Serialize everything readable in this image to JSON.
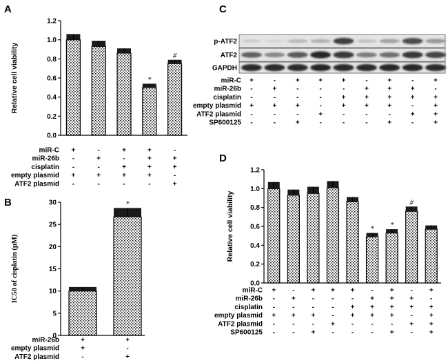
{
  "chart_data": [
    {
      "panel": "A",
      "type": "bar",
      "ylabel": "Relative cell viability",
      "ylim": [
        0,
        1.2
      ],
      "yticks": [
        "0.0",
        "0.2",
        "0.4",
        "0.6",
        "0.8",
        "1.0",
        "1.2"
      ],
      "values": [
        1.0,
        0.93,
        0.86,
        0.5,
        0.75
      ],
      "errors": [
        0.06,
        0.06,
        0.05,
        0.04,
        0.04
      ],
      "annotations": [
        "",
        "",
        "",
        "*",
        "#"
      ],
      "conditions": [
        {
          "label": "miR-C",
          "signs": [
            "+",
            "-",
            "+",
            "+",
            "-"
          ]
        },
        {
          "label": "miR-26b",
          "signs": [
            "-",
            "+",
            "-",
            "+",
            "+"
          ]
        },
        {
          "label": "cisplatin",
          "signs": [
            "-",
            "-",
            "+",
            "+",
            "+"
          ]
        },
        {
          "label": "empty plasmid",
          "signs": [
            "+",
            "+",
            "+",
            "+",
            "-"
          ]
        },
        {
          "label": "ATF2 plasmid",
          "signs": [
            "-",
            "-",
            "-",
            "-",
            "+"
          ]
        }
      ]
    },
    {
      "panel": "B",
      "type": "bar",
      "ylabel": "IC50 of cisplatin (μM)",
      "ylim": [
        0,
        30
      ],
      "yticks": [
        "0",
        "5",
        "10",
        "15",
        "20",
        "25",
        "30"
      ],
      "values": [
        10.0,
        26.7
      ],
      "errors": [
        0.9,
        2.0
      ],
      "annotations": [
        "",
        "*"
      ],
      "conditions": [
        {
          "label": "miR-26b",
          "signs": [
            "+",
            "+"
          ]
        },
        {
          "label": "empty plasmid",
          "signs": [
            "+",
            "-"
          ]
        },
        {
          "label": "ATF2 plasmid",
          "signs": [
            "-",
            "+"
          ]
        }
      ]
    },
    {
      "panel": "D",
      "type": "bar",
      "ylabel": "Relative cell viability",
      "ylim": [
        0,
        1.2
      ],
      "yticks": [
        "0.0",
        "0.2",
        "0.4",
        "0.6",
        "0.8",
        "1.0",
        "1.2"
      ],
      "values": [
        1.0,
        0.93,
        0.95,
        1.01,
        0.86,
        0.49,
        0.53,
        0.76,
        0.57
      ],
      "errors": [
        0.07,
        0.06,
        0.07,
        0.07,
        0.05,
        0.04,
        0.04,
        0.05,
        0.04
      ],
      "annotations": [
        "",
        "",
        "",
        "",
        "",
        "*",
        "*",
        "#",
        ""
      ],
      "conditions": [
        {
          "label": "miR-C",
          "signs": [
            "+",
            "-",
            "+",
            "+",
            "+",
            "-",
            "+",
            "-",
            "+"
          ]
        },
        {
          "label": "miR-26b",
          "signs": [
            "-",
            "+",
            "-",
            "-",
            "-",
            "+",
            "+",
            "+",
            "-"
          ]
        },
        {
          "label": "cisplatin",
          "signs": [
            "-",
            "-",
            "-",
            "-",
            "+",
            "+",
            "+",
            "+",
            "+"
          ]
        },
        {
          "label": "empty plasmid",
          "signs": [
            "+",
            "+",
            "+",
            "-",
            "+",
            "+",
            "+",
            "-",
            "+"
          ]
        },
        {
          "label": "ATF2 plasmid",
          "signs": [
            "-",
            "-",
            "-",
            "+",
            "-",
            "-",
            "-",
            "+",
            "+"
          ]
        },
        {
          "label": "SP600125",
          "signs": [
            "-",
            "-",
            "+",
            "-",
            "-",
            "-",
            "+",
            "-",
            "+"
          ]
        }
      ]
    }
  ],
  "blot": {
    "panel": "C",
    "rows": [
      {
        "label": "p-ATF2",
        "intensity": [
          0.08,
          0.04,
          0.18,
          0.22,
          0.78,
          0.14,
          0.3,
          0.72,
          0.35
        ]
      },
      {
        "label": "ATF2",
        "intensity": [
          0.62,
          0.42,
          0.65,
          0.9,
          0.82,
          0.48,
          0.55,
          0.82,
          0.76
        ]
      },
      {
        "label": "GAPDH",
        "intensity": [
          0.88,
          0.88,
          0.88,
          0.9,
          0.88,
          0.88,
          0.9,
          0.9,
          0.88
        ]
      }
    ],
    "conditions": [
      {
        "label": "miR-C",
        "signs": [
          "+",
          "-",
          "+",
          "+",
          "+",
          "-",
          "+",
          "-",
          "+"
        ]
      },
      {
        "label": "miR-26b",
        "signs": [
          "-",
          "+",
          "-",
          "-",
          "-",
          "+",
          "+",
          "+",
          "-"
        ]
      },
      {
        "label": "cisplatin",
        "signs": [
          "-",
          "-",
          "-",
          "-",
          "+",
          "+",
          "+",
          "+",
          "+"
        ]
      },
      {
        "label": "empty plasmid",
        "signs": [
          "+",
          "+",
          "+",
          "-",
          "+",
          "+",
          "+",
          "-",
          "+"
        ]
      },
      {
        "label": "ATF2 plasmid",
        "signs": [
          "-",
          "-",
          "-",
          "+",
          "-",
          "-",
          "-",
          "+",
          "+"
        ]
      },
      {
        "label": "SP600125",
        "signs": [
          "-",
          "-",
          "+",
          "-",
          "-",
          "-",
          "+",
          "-",
          "+"
        ]
      }
    ]
  }
}
